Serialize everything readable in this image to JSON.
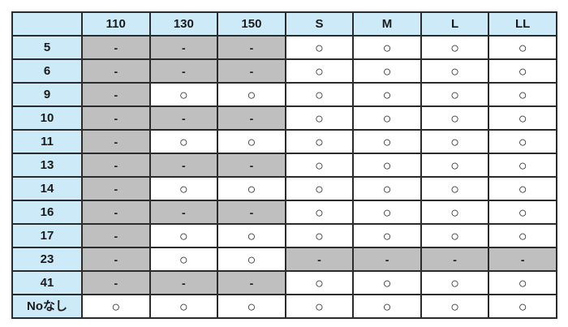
{
  "chart_data": {
    "type": "table",
    "title": "",
    "corner": "",
    "columns": [
      "110",
      "130",
      "150",
      "S",
      "M",
      "L",
      "LL"
    ],
    "rows": [
      {
        "label": "5",
        "cells": [
          "-",
          "-",
          "-",
          "○",
          "○",
          "○",
          "○"
        ]
      },
      {
        "label": "6",
        "cells": [
          "-",
          "-",
          "-",
          "○",
          "○",
          "○",
          "○"
        ]
      },
      {
        "label": "9",
        "cells": [
          "-",
          "○",
          "○",
          "○",
          "○",
          "○",
          "○"
        ]
      },
      {
        "label": "10",
        "cells": [
          "-",
          "-",
          "-",
          "○",
          "○",
          "○",
          "○"
        ]
      },
      {
        "label": "11",
        "cells": [
          "-",
          "○",
          "○",
          "○",
          "○",
          "○",
          "○"
        ]
      },
      {
        "label": "13",
        "cells": [
          "-",
          "-",
          "-",
          "○",
          "○",
          "○",
          "○"
        ]
      },
      {
        "label": "14",
        "cells": [
          "-",
          "○",
          "○",
          "○",
          "○",
          "○",
          "○"
        ]
      },
      {
        "label": "16",
        "cells": [
          "-",
          "-",
          "-",
          "○",
          "○",
          "○",
          "○"
        ]
      },
      {
        "label": "17",
        "cells": [
          "-",
          "○",
          "○",
          "○",
          "○",
          "○",
          "○"
        ]
      },
      {
        "label": "23",
        "cells": [
          "-",
          "○",
          "○",
          "-",
          "-",
          "-",
          "-"
        ]
      },
      {
        "label": "41",
        "cells": [
          "-",
          "-",
          "-",
          "○",
          "○",
          "○",
          "○"
        ]
      },
      {
        "label": "Noなし",
        "cells": [
          "○",
          "○",
          "○",
          "○",
          "○",
          "○",
          "○"
        ]
      }
    ],
    "symbols": {
      "available": "○",
      "unavailable": "-"
    },
    "colors": {
      "header_bg": "#CDEAF9",
      "label_bg": "#CDEAF9",
      "unavailable_bg": "#BFBFBF",
      "available_bg": "#FFFFFF",
      "border": "#2B2B2B"
    }
  }
}
